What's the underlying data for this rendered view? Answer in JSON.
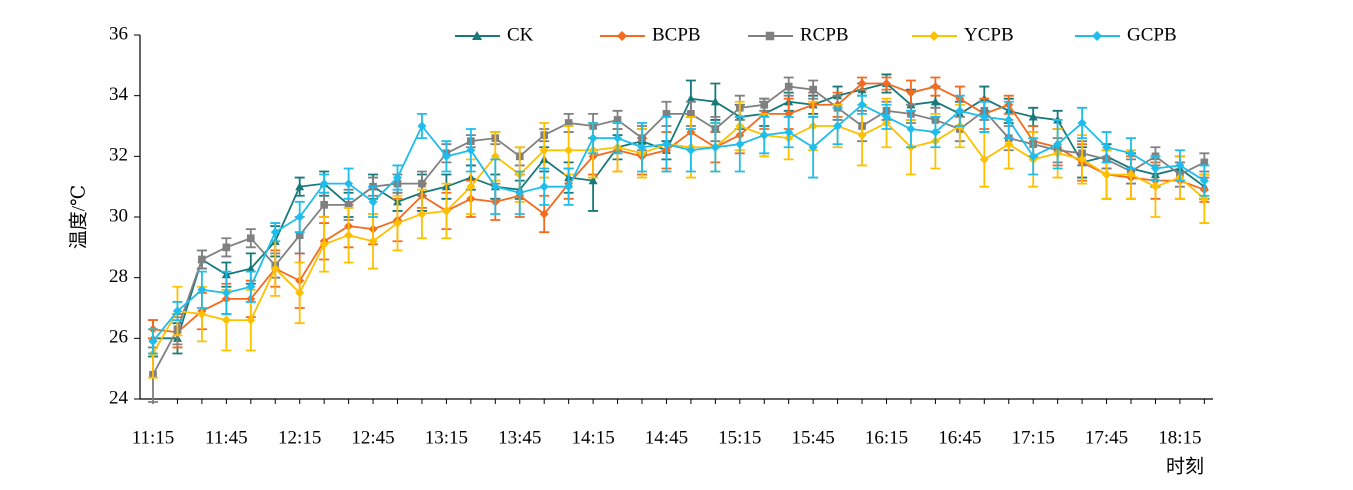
{
  "chart_data": {
    "type": "line",
    "y_label": "温度/℃",
    "x_label": "时刻",
    "categories": [
      "11:15",
      null,
      null,
      "11:45",
      null,
      null,
      "12:15",
      null,
      null,
      "12:45",
      null,
      null,
      "13:15",
      null,
      null,
      "13:45",
      null,
      null,
      "14:15",
      null,
      null,
      "14:45",
      null,
      null,
      "15:15",
      null,
      null,
      "15:45",
      null,
      null,
      "16:15",
      null,
      null,
      "16:45",
      null,
      null,
      "17:15",
      null,
      null,
      "17:45",
      null,
      null,
      "18:15",
      null
    ],
    "ylim": [
      24,
      36
    ],
    "yticks": [
      24,
      26,
      28,
      30,
      32,
      34,
      36
    ],
    "series": [
      {
        "name": "CK",
        "color": "#17797a",
        "marker": "triangle",
        "values": [
          26.0,
          26.0,
          28.6,
          28.1,
          28.3,
          29.2,
          31.0,
          31.1,
          30.4,
          31.0,
          30.5,
          30.8,
          31.0,
          31.3,
          31.0,
          30.9,
          31.9,
          31.3,
          31.2,
          32.3,
          32.5,
          32.2,
          33.9,
          33.8,
          33.3,
          33.4,
          33.8,
          33.7,
          34.0,
          34.2,
          34.4,
          33.7,
          33.8,
          33.4,
          33.9,
          33.5,
          33.3,
          33.2,
          31.8,
          32.0,
          31.6,
          31.4,
          31.6,
          31.0
        ],
        "errors": [
          0.6,
          0.5,
          0.3,
          0.4,
          0.5,
          0.5,
          0.3,
          0.4,
          0.4,
          0.4,
          0.3,
          0.6,
          0.4,
          0.4,
          0.4,
          0.3,
          0.4,
          0.5,
          1.0,
          0.4,
          0.4,
          0.3,
          0.6,
          0.6,
          0.4,
          0.4,
          0.3,
          0.3,
          0.3,
          0.2,
          0.3,
          0.5,
          0.5,
          0.4,
          0.4,
          0.4,
          0.3,
          0.3,
          0.5,
          0.4,
          0.5,
          0.4,
          0.4,
          0.4
        ]
      },
      {
        "name": "BCPB",
        "color": "#f46a1e",
        "marker": "diamond",
        "values": [
          26.3,
          26.2,
          26.9,
          27.3,
          27.3,
          28.3,
          27.9,
          29.2,
          29.7,
          29.6,
          29.9,
          30.7,
          30.2,
          30.6,
          30.5,
          30.7,
          30.1,
          31.1,
          32.0,
          32.2,
          32.0,
          32.2,
          32.8,
          32.3,
          32.7,
          33.4,
          33.4,
          33.7,
          33.7,
          34.4,
          34.4,
          34.1,
          34.3,
          33.9,
          33.4,
          33.7,
          32.5,
          32.3,
          31.8,
          31.4,
          31.3,
          31.2,
          31.2,
          30.9
        ],
        "errors": [
          0.3,
          0.5,
          0.6,
          0.5,
          0.6,
          0.6,
          0.9,
          0.6,
          0.7,
          0.5,
          0.7,
          0.4,
          0.6,
          0.6,
          0.6,
          0.7,
          0.6,
          0.5,
          0.6,
          0.7,
          0.6,
          0.6,
          0.5,
          0.5,
          0.6,
          0.5,
          0.5,
          0.4,
          0.4,
          0.2,
          0.2,
          0.4,
          0.3,
          0.4,
          0.5,
          0.3,
          0.5,
          0.6,
          0.6,
          0.8,
          0.7,
          0.6,
          0.6,
          0.4
        ]
      },
      {
        "name": "RCPB",
        "color": "#808080",
        "marker": "square",
        "values": [
          24.8,
          26.3,
          28.6,
          29.0,
          29.3,
          28.4,
          29.4,
          30.4,
          30.4,
          31.0,
          31.1,
          31.1,
          32.1,
          32.5,
          32.6,
          32.0,
          32.7,
          33.1,
          33.0,
          33.2,
          32.6,
          33.4,
          33.4,
          32.9,
          33.6,
          33.7,
          34.3,
          34.2,
          33.6,
          33.0,
          33.5,
          33.4,
          33.2,
          32.9,
          33.5,
          32.6,
          32.4,
          32.2,
          32.1,
          31.9,
          31.5,
          32.0,
          31.4,
          31.8
        ],
        "errors": [
          0.9,
          0.5,
          0.3,
          0.3,
          0.3,
          0.4,
          0.6,
          0.4,
          0.5,
          0.3,
          0.3,
          0.4,
          0.3,
          0.2,
          0.2,
          0.3,
          0.2,
          0.3,
          0.4,
          0.3,
          0.4,
          0.4,
          0.4,
          0.4,
          0.4,
          0.2,
          0.3,
          0.3,
          0.4,
          0.5,
          0.3,
          0.3,
          0.4,
          0.4,
          0.3,
          0.4,
          0.4,
          0.4,
          0.4,
          0.3,
          0.4,
          0.3,
          0.4,
          0.3
        ]
      },
      {
        "name": "YCPB",
        "color": "#ffc000",
        "marker": "diamond",
        "values": [
          25.5,
          26.9,
          26.8,
          26.6,
          26.6,
          28.3,
          27.5,
          29.1,
          29.4,
          29.2,
          29.8,
          30.1,
          30.2,
          31.0,
          32.0,
          31.4,
          32.2,
          32.2,
          32.2,
          32.3,
          32.1,
          32.4,
          32.3,
          32.3,
          33.0,
          32.7,
          32.6,
          33.0,
          33.0,
          32.7,
          33.1,
          32.3,
          32.5,
          33.0,
          31.9,
          32.4,
          31.9,
          32.1,
          31.9,
          31.4,
          31.4,
          31.0,
          31.3,
          30.6
        ],
        "errors": [
          0.8,
          0.8,
          0.9,
          1.0,
          1.0,
          0.9,
          1.0,
          0.9,
          0.9,
          0.9,
          0.9,
          0.8,
          0.9,
          0.9,
          0.8,
          0.9,
          0.9,
          0.8,
          0.9,
          0.8,
          0.8,
          0.9,
          1.0,
          0.8,
          0.8,
          0.7,
          0.7,
          0.8,
          0.7,
          1.0,
          0.8,
          0.9,
          0.9,
          0.7,
          0.9,
          0.8,
          0.9,
          0.8,
          0.8,
          0.8,
          0.8,
          1.0,
          0.7,
          0.8
        ]
      },
      {
        "name": "GCPB",
        "color": "#1dbded",
        "marker": "diamond",
        "values": [
          25.9,
          26.9,
          27.6,
          27.5,
          27.7,
          29.5,
          30.0,
          31.1,
          31.1,
          30.5,
          31.3,
          33.0,
          32.0,
          32.2,
          31.0,
          30.8,
          31.0,
          31.0,
          32.6,
          32.6,
          32.3,
          32.4,
          32.2,
          32.3,
          32.4,
          32.7,
          32.8,
          32.3,
          33.0,
          33.7,
          33.3,
          32.9,
          32.8,
          33.5,
          33.3,
          33.2,
          32.0,
          32.4,
          33.1,
          32.3,
          32.1,
          31.6,
          31.7,
          31.2
        ],
        "errors": [
          0.4,
          0.3,
          0.6,
          0.7,
          0.5,
          0.3,
          0.5,
          0.3,
          0.5,
          0.5,
          0.4,
          0.4,
          0.5,
          0.7,
          0.9,
          0.7,
          0.6,
          0.6,
          0.5,
          0.5,
          0.8,
          0.9,
          0.7,
          0.8,
          0.9,
          0.6,
          0.5,
          1.0,
          0.6,
          0.3,
          0.4,
          0.6,
          0.5,
          0.5,
          0.5,
          0.6,
          0.6,
          0.8,
          0.5,
          0.5,
          0.5,
          0.4,
          0.5,
          0.5
        ]
      }
    ]
  }
}
